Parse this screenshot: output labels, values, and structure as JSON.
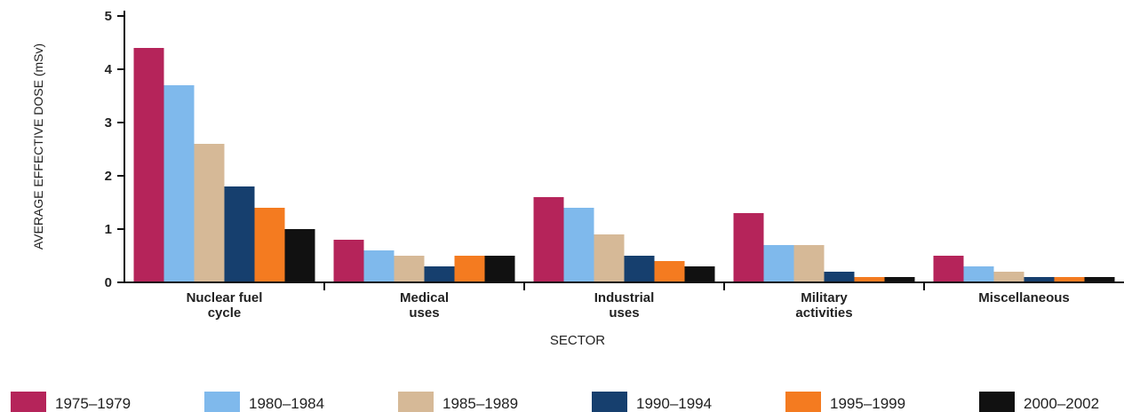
{
  "chart_data": {
    "type": "bar",
    "title": "",
    "xlabel": "SECTOR",
    "ylabel": "AVERAGE EFFECTIVE DOSE (mSv)",
    "ylim": [
      0,
      5
    ],
    "yticks": [
      "0",
      "1",
      "2",
      "3",
      "4",
      "5"
    ],
    "categories": [
      [
        "Nuclear fuel",
        "cycle"
      ],
      [
        "Medical",
        "uses"
      ],
      [
        "Industrial",
        "uses"
      ],
      [
        "Military",
        "activities"
      ],
      [
        "Miscellaneous"
      ]
    ],
    "series": [
      {
        "name": "1975–1979",
        "color": "#b5245a",
        "values": [
          4.4,
          0.8,
          1.6,
          1.3,
          0.5
        ]
      },
      {
        "name": "1980–1984",
        "color": "#7fb9ec",
        "values": [
          3.7,
          0.6,
          1.4,
          0.7,
          0.3
        ]
      },
      {
        "name": "1985–1989",
        "color": "#d6b997",
        "values": [
          2.6,
          0.5,
          0.9,
          0.7,
          0.2
        ]
      },
      {
        "name": "1990–1994",
        "color": "#163f6e",
        "values": [
          1.8,
          0.3,
          0.5,
          0.2,
          0.1
        ]
      },
      {
        "name": "1995–1999",
        "color": "#f47b20",
        "values": [
          1.4,
          0.5,
          0.4,
          0.1,
          0.1
        ]
      },
      {
        "name": "2000–2002",
        "color": "#111111",
        "values": [
          1.0,
          0.5,
          0.3,
          0.1,
          0.1
        ]
      }
    ],
    "grid": false,
    "legend_position": "bottom"
  }
}
